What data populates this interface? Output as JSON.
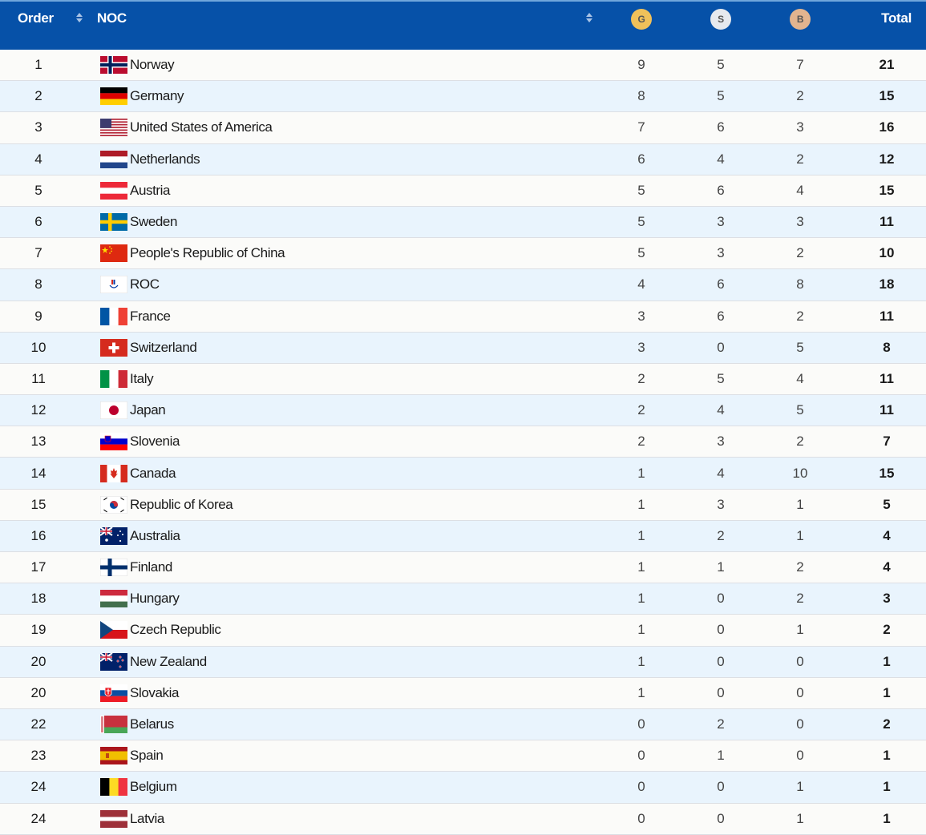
{
  "header": {
    "order": "Order",
    "noc": "NOC",
    "gold": "G",
    "silver": "S",
    "bronze": "B",
    "total": "Total",
    "sort_icon": "sort-arrows-icon"
  },
  "colors": {
    "header_bg": "#0651a8",
    "row_odd": "#fbfbf9",
    "row_even": "#e9f4fd",
    "gold": "#f0c15a",
    "silver": "#e6e9ee",
    "bronze": "#e2b48f"
  },
  "rows": [
    {
      "order": "1",
      "noc": "Norway",
      "flag": "norway-flag-icon",
      "g": "9",
      "s": "5",
      "b": "7",
      "total": "21"
    },
    {
      "order": "2",
      "noc": "Germany",
      "flag": "germany-flag-icon",
      "g": "8",
      "s": "5",
      "b": "2",
      "total": "15"
    },
    {
      "order": "3",
      "noc": "United States of America",
      "flag": "usa-flag-icon",
      "g": "7",
      "s": "6",
      "b": "3",
      "total": "16"
    },
    {
      "order": "4",
      "noc": "Netherlands",
      "flag": "netherlands-flag-icon",
      "g": "6",
      "s": "4",
      "b": "2",
      "total": "12"
    },
    {
      "order": "5",
      "noc": "Austria",
      "flag": "austria-flag-icon",
      "g": "5",
      "s": "6",
      "b": "4",
      "total": "15"
    },
    {
      "order": "6",
      "noc": "Sweden",
      "flag": "sweden-flag-icon",
      "g": "5",
      "s": "3",
      "b": "3",
      "total": "11"
    },
    {
      "order": "7",
      "noc": "People's Republic of China",
      "flag": "china-flag-icon",
      "g": "5",
      "s": "3",
      "b": "2",
      "total": "10"
    },
    {
      "order": "8",
      "noc": "ROC",
      "flag": "roc-flag-icon",
      "g": "4",
      "s": "6",
      "b": "8",
      "total": "18"
    },
    {
      "order": "9",
      "noc": "France",
      "flag": "france-flag-icon",
      "g": "3",
      "s": "6",
      "b": "2",
      "total": "11"
    },
    {
      "order": "10",
      "noc": "Switzerland",
      "flag": "switzerland-flag-icon",
      "g": "3",
      "s": "0",
      "b": "5",
      "total": "8"
    },
    {
      "order": "11",
      "noc": "Italy",
      "flag": "italy-flag-icon",
      "g": "2",
      "s": "5",
      "b": "4",
      "total": "11"
    },
    {
      "order": "12",
      "noc": "Japan",
      "flag": "japan-flag-icon",
      "g": "2",
      "s": "4",
      "b": "5",
      "total": "11"
    },
    {
      "order": "13",
      "noc": "Slovenia",
      "flag": "slovenia-flag-icon",
      "g": "2",
      "s": "3",
      "b": "2",
      "total": "7"
    },
    {
      "order": "14",
      "noc": "Canada",
      "flag": "canada-flag-icon",
      "g": "1",
      "s": "4",
      "b": "10",
      "total": "15"
    },
    {
      "order": "15",
      "noc": "Republic of Korea",
      "flag": "korea-flag-icon",
      "g": "1",
      "s": "3",
      "b": "1",
      "total": "5"
    },
    {
      "order": "16",
      "noc": "Australia",
      "flag": "australia-flag-icon",
      "g": "1",
      "s": "2",
      "b": "1",
      "total": "4"
    },
    {
      "order": "17",
      "noc": "Finland",
      "flag": "finland-flag-icon",
      "g": "1",
      "s": "1",
      "b": "2",
      "total": "4"
    },
    {
      "order": "18",
      "noc": "Hungary",
      "flag": "hungary-flag-icon",
      "g": "1",
      "s": "0",
      "b": "2",
      "total": "3"
    },
    {
      "order": "19",
      "noc": "Czech Republic",
      "flag": "czech-flag-icon",
      "g": "1",
      "s": "0",
      "b": "1",
      "total": "2"
    },
    {
      "order": "20",
      "noc": "New Zealand",
      "flag": "new-zealand-flag-icon",
      "g": "1",
      "s": "0",
      "b": "0",
      "total": "1"
    },
    {
      "order": "20",
      "noc": "Slovakia",
      "flag": "slovakia-flag-icon",
      "g": "1",
      "s": "0",
      "b": "0",
      "total": "1"
    },
    {
      "order": "22",
      "noc": "Belarus",
      "flag": "belarus-flag-icon",
      "g": "0",
      "s": "2",
      "b": "0",
      "total": "2"
    },
    {
      "order": "23",
      "noc": "Spain",
      "flag": "spain-flag-icon",
      "g": "0",
      "s": "1",
      "b": "0",
      "total": "1"
    },
    {
      "order": "24",
      "noc": "Belgium",
      "flag": "belgium-flag-icon",
      "g": "0",
      "s": "0",
      "b": "1",
      "total": "1"
    },
    {
      "order": "24",
      "noc": "Latvia",
      "flag": "latvia-flag-icon",
      "g": "0",
      "s": "0",
      "b": "1",
      "total": "1"
    }
  ]
}
